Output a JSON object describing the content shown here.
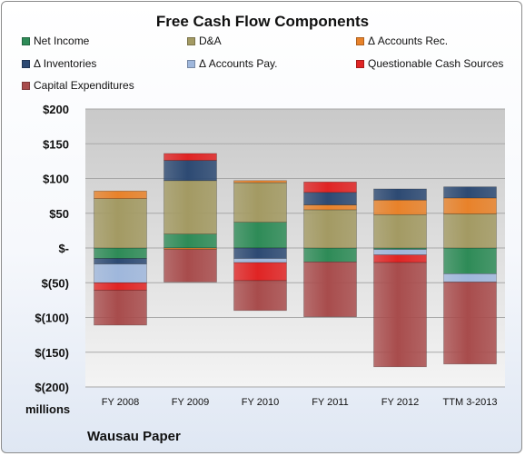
{
  "chart_data": {
    "type": "bar",
    "stacked": true,
    "title": "Free Cash Flow Components",
    "categories": [
      "FY 2008",
      "FY 2009",
      "FY 2010",
      "FY 2011",
      "FY 2012",
      "TTM 3-2013"
    ],
    "y_tick_labels": [
      "$200",
      "$150",
      "$100",
      "$50",
      "$-",
      "$(50)",
      "$(100)",
      "$(150)",
      "$(200)"
    ],
    "y_tick_values": [
      200,
      150,
      100,
      50,
      0,
      -50,
      -100,
      -150,
      -200
    ],
    "ylim": [
      -200,
      200
    ],
    "units_label": "millions",
    "grid": true,
    "legend_position": "top",
    "series": [
      {
        "name": "Net Income",
        "color": "#2e8b57",
        "values": [
          -15,
          20,
          37,
          -20,
          -2,
          -37
        ]
      },
      {
        "name": "D&A",
        "color": "#a39a63",
        "values": [
          71,
          77,
          57,
          55,
          48,
          49
        ]
      },
      {
        "name": "Δ Accounts Rec.",
        "color": "#e8822a",
        "values": [
          11,
          -2,
          3,
          7,
          21,
          23
        ]
      },
      {
        "name": "Δ Inventories",
        "color": "#2d4a73",
        "values": [
          -8,
          29,
          -15,
          18,
          16,
          16
        ]
      },
      {
        "name": "Δ Accounts Pay.",
        "color": "#9fb7dc",
        "values": [
          -27,
          0,
          -6,
          0,
          -8,
          -12
        ]
      },
      {
        "name": "Questionable Cash Sources",
        "color": "#e02424",
        "values": [
          -11,
          10,
          -26,
          15,
          -11,
          0
        ]
      },
      {
        "name": "Capital Expenditures",
        "color": "#a84c4c",
        "values": [
          -50,
          -47,
          -43,
          -79,
          -150,
          -118
        ]
      }
    ]
  },
  "footer": {
    "company": "Wausau Paper"
  }
}
